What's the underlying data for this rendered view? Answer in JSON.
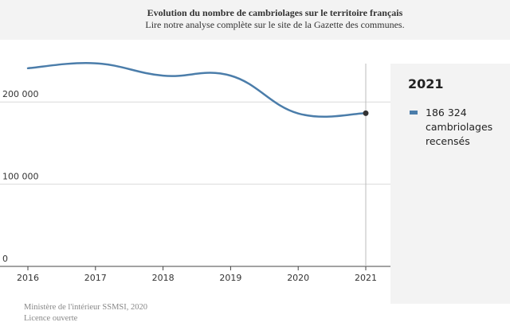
{
  "header": {
    "title": "Evolution du nombre de cambriolages sur le territoire français",
    "subtitle": "Lire notre analyse complète sur le site de la Gazette des communes."
  },
  "tooltip": {
    "year": "2021",
    "value_text": "186 324",
    "unit_text": "cambriolages recensés"
  },
  "source": {
    "line1": "Ministère de l'intérieur SSMSI, 2020",
    "line2": "Licence ouverte"
  },
  "colors": {
    "series": "#4b7daa",
    "grid": "#d9d9d9",
    "panel": "#f3f3f3"
  },
  "chart_data": {
    "type": "line",
    "title": "Evolution du nombre de cambriolages sur le territoire français",
    "xlabel": "",
    "ylabel": "",
    "x": [
      2016,
      2017,
      2018,
      2019,
      2020,
      2021
    ],
    "xtick_labels": [
      "2016",
      "2017",
      "2018",
      "2019",
      "2020",
      "2021"
    ],
    "yticks": [
      0,
      100000,
      200000
    ],
    "ytick_labels": [
      "0",
      "100 000",
      "200 000"
    ],
    "ylim": [
      0,
      265000
    ],
    "series": [
      {
        "name": "cambriolages recensés",
        "values": [
          241000,
          247000,
          232000,
          232000,
          186000,
          186324
        ]
      }
    ],
    "highlight": {
      "x": 2021,
      "value": 186324
    },
    "grid": true
  }
}
